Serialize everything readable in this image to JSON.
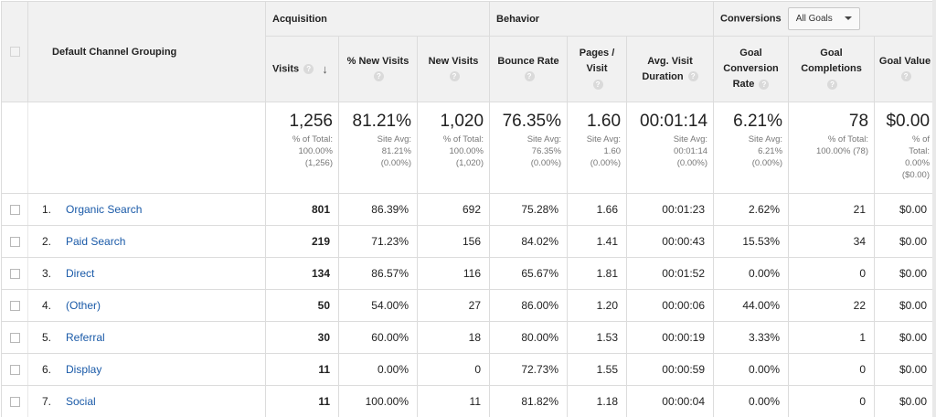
{
  "groups": {
    "dimension": "Default Channel Grouping",
    "acquisition": "Acquisition",
    "behavior": "Behavior",
    "conversions": "Conversions",
    "goal_select": "All Goals"
  },
  "columns": {
    "visits": "Visits",
    "pct_new_visits": "% New Visits",
    "new_visits": "New Visits",
    "bounce_rate": "Bounce Rate",
    "pages_visit": "Pages / Visit",
    "avg_duration": "Avg. Visit Duration",
    "goal_conv_rate": "Goal Conversion Rate",
    "goal_completions": "Goal Completions",
    "goal_value": "Goal Value"
  },
  "totals": {
    "visits": {
      "value": "1,256",
      "l1": "% of Total:",
      "l2": "100.00%",
      "l3": "(1,256)"
    },
    "pct_new_visits": {
      "value": "81.21%",
      "l1": "Site Avg:",
      "l2": "81.21%",
      "l3": "(0.00%)"
    },
    "new_visits": {
      "value": "1,020",
      "l1": "% of Total:",
      "l2": "100.00%",
      "l3": "(1,020)"
    },
    "bounce_rate": {
      "value": "76.35%",
      "l1": "Site Avg:",
      "l2": "76.35%",
      "l3": "(0.00%)"
    },
    "pages_visit": {
      "value": "1.60",
      "l1": "Site Avg:",
      "l2": "1.60",
      "l3": "(0.00%)"
    },
    "avg_duration": {
      "value": "00:01:14",
      "l1": "Site Avg:",
      "l2": "00:01:14",
      "l3": "(0.00%)"
    },
    "goal_conv_rate": {
      "value": "6.21%",
      "l1": "Site Avg:",
      "l2": "6.21%",
      "l3": "(0.00%)"
    },
    "goal_completions": {
      "value": "78",
      "l1": "% of Total:",
      "l2": "100.00% (78)",
      "l3": ""
    },
    "goal_value": {
      "value": "$0.00",
      "l1": "% of",
      "l2": "Total:",
      "l3": "0.00%",
      "l4": "($0.00)"
    }
  },
  "rows": [
    {
      "idx": "1.",
      "name": "Organic Search",
      "visits": "801",
      "pct_new": "86.39%",
      "new_visits": "692",
      "bounce": "75.28%",
      "pages": "1.66",
      "duration": "00:01:23",
      "conv_rate": "2.62%",
      "completions": "21",
      "value": "$0.00"
    },
    {
      "idx": "2.",
      "name": "Paid Search",
      "visits": "219",
      "pct_new": "71.23%",
      "new_visits": "156",
      "bounce": "84.02%",
      "pages": "1.41",
      "duration": "00:00:43",
      "conv_rate": "15.53%",
      "completions": "34",
      "value": "$0.00"
    },
    {
      "idx": "3.",
      "name": "Direct",
      "visits": "134",
      "pct_new": "86.57%",
      "new_visits": "116",
      "bounce": "65.67%",
      "pages": "1.81",
      "duration": "00:01:52",
      "conv_rate": "0.00%",
      "completions": "0",
      "value": "$0.00"
    },
    {
      "idx": "4.",
      "name": "(Other)",
      "visits": "50",
      "pct_new": "54.00%",
      "new_visits": "27",
      "bounce": "86.00%",
      "pages": "1.20",
      "duration": "00:00:06",
      "conv_rate": "44.00%",
      "completions": "22",
      "value": "$0.00"
    },
    {
      "idx": "5.",
      "name": "Referral",
      "visits": "30",
      "pct_new": "60.00%",
      "new_visits": "18",
      "bounce": "80.00%",
      "pages": "1.53",
      "duration": "00:00:19",
      "conv_rate": "3.33%",
      "completions": "1",
      "value": "$0.00"
    },
    {
      "idx": "6.",
      "name": "Display",
      "visits": "11",
      "pct_new": "0.00%",
      "new_visits": "0",
      "bounce": "72.73%",
      "pages": "1.55",
      "duration": "00:00:59",
      "conv_rate": "0.00%",
      "completions": "0",
      "value": "$0.00"
    },
    {
      "idx": "7.",
      "name": "Social",
      "visits": "11",
      "pct_new": "100.00%",
      "new_visits": "11",
      "bounce": "81.82%",
      "pages": "1.18",
      "duration": "00:00:04",
      "conv_rate": "0.00%",
      "completions": "0",
      "value": "$0.00"
    }
  ],
  "icons": {
    "help": "?",
    "sort": "↓"
  },
  "colors": {
    "link": "#1a5aa8",
    "header_bg": "#f1f1f1",
    "border": "#dcdcdc"
  }
}
